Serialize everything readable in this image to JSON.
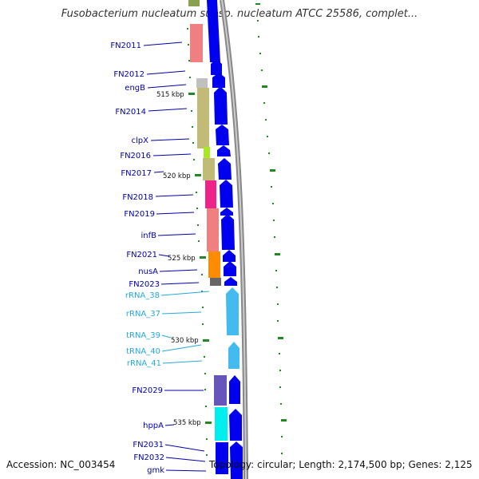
{
  "title": "Fusobacterium nucleatum subsp. nucleatum ATCC 25586, complet...",
  "footer": {
    "accession": "Accession: NC_003454",
    "summary": "Topology: circular; Length: 2,174,500 bp; Genes: 2,125"
  },
  "colors": {
    "gene_label": "#0000aa",
    "rna_label": "#22aadd",
    "cds_arrow": "#0000ee",
    "rna_arrow": "#44bbee",
    "tick": "#228822",
    "backbone": "#888888"
  },
  "genes": [
    {
      "name": "FN2011",
      "type": "gene"
    },
    {
      "name": "FN2012",
      "type": "gene"
    },
    {
      "name": "engB",
      "type": "gene"
    },
    {
      "name": "FN2014",
      "type": "gene"
    },
    {
      "name": "clpX",
      "type": "gene"
    },
    {
      "name": "FN2016",
      "type": "gene"
    },
    {
      "name": "FN2017",
      "type": "gene"
    },
    {
      "name": "FN2018",
      "type": "gene"
    },
    {
      "name": "FN2019",
      "type": "gene"
    },
    {
      "name": "infB",
      "type": "gene"
    },
    {
      "name": "FN2021",
      "type": "gene"
    },
    {
      "name": "nusA",
      "type": "gene"
    },
    {
      "name": "FN2023",
      "type": "gene"
    },
    {
      "name": "rRNA_38",
      "type": "rna"
    },
    {
      "name": "rRNA_37",
      "type": "rna"
    },
    {
      "name": "tRNA_39",
      "type": "rna"
    },
    {
      "name": "tRNA_40",
      "type": "rna"
    },
    {
      "name": "rRNA_41",
      "type": "rna"
    },
    {
      "name": "FN2029",
      "type": "gene"
    },
    {
      "name": "hppA",
      "type": "gene"
    },
    {
      "name": "FN2031",
      "type": "gene"
    },
    {
      "name": "FN2032",
      "type": "gene"
    },
    {
      "name": "gmk",
      "type": "gene"
    }
  ],
  "scale_labels": [
    "515 kbp",
    "520 kbp",
    "525 kbp",
    "530 kbp",
    "535 kbp"
  ]
}
